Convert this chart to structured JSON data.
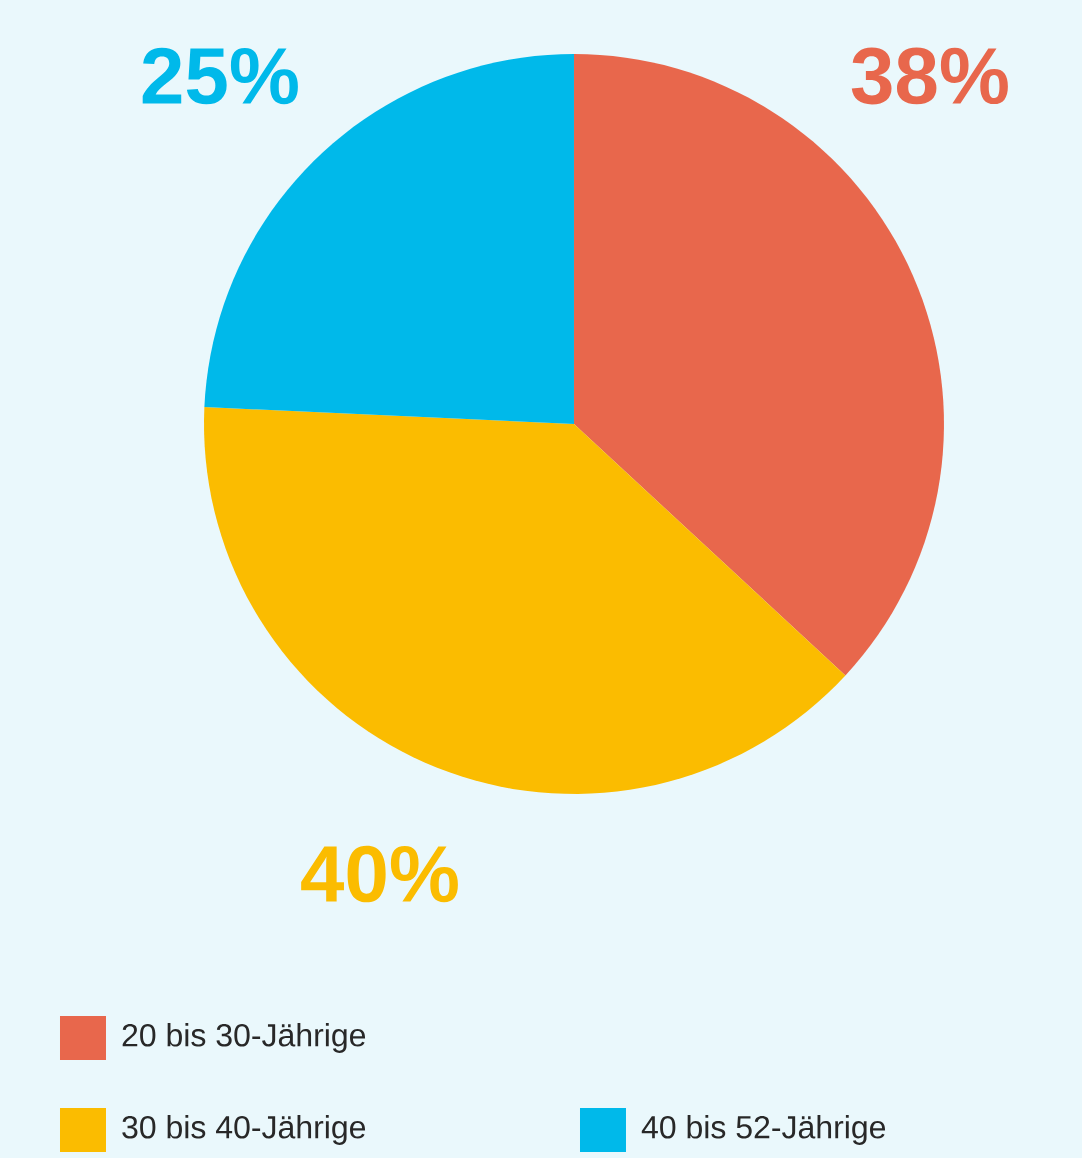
{
  "chart_data": {
    "type": "pie",
    "categories": [
      "20 bis 30-Jährige",
      "30 bis 40-Jährige",
      "40 bis 52-Jährige"
    ],
    "values": [
      38,
      40,
      25
    ],
    "colors": [
      "#e8674c",
      "#fbbc00",
      "#00b9ea"
    ],
    "value_labels": [
      "38%",
      "40%",
      "25%"
    ],
    "legend": "bottom"
  }
}
